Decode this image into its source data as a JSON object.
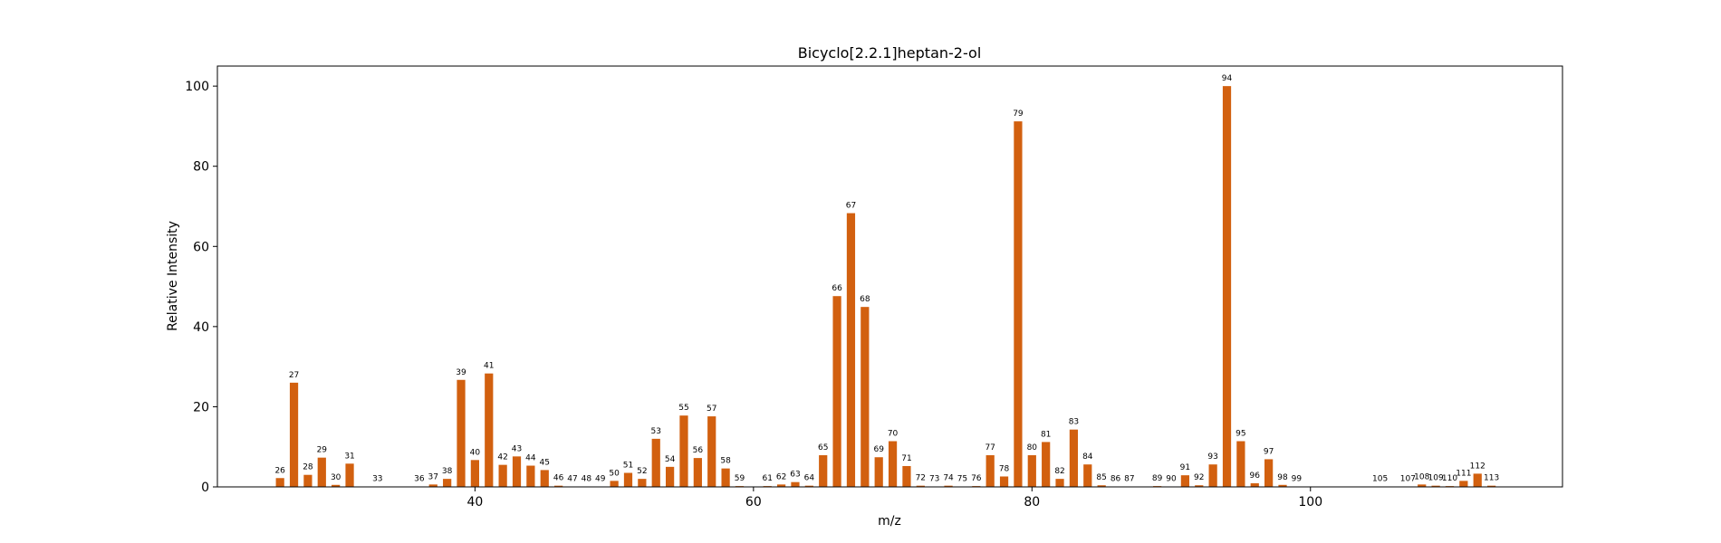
{
  "chart_data": {
    "type": "bar",
    "title": "Bicyclo[2.2.1]heptan-2-ol",
    "xlabel": "m/z",
    "ylabel": "Relative Intensity",
    "xlim": [
      25,
      113
    ],
    "ylim": [
      0,
      105
    ],
    "x_ticks": [
      40,
      60,
      80,
      100
    ],
    "y_ticks": [
      0,
      20,
      40,
      60,
      80,
      100
    ],
    "grid": false,
    "legend": "none",
    "bar_color": "#d2600f",
    "points": [
      {
        "mz": 26,
        "intensity": 2.2
      },
      {
        "mz": 27,
        "intensity": 26.0
      },
      {
        "mz": 28,
        "intensity": 3.0
      },
      {
        "mz": 29,
        "intensity": 7.3
      },
      {
        "mz": 30,
        "intensity": 0.5
      },
      {
        "mz": 31,
        "intensity": 5.8
      },
      {
        "mz": 33,
        "intensity": 0.1
      },
      {
        "mz": 36,
        "intensity": 0.1
      },
      {
        "mz": 37,
        "intensity": 0.6
      },
      {
        "mz": 38,
        "intensity": 2.0
      },
      {
        "mz": 39,
        "intensity": 26.7
      },
      {
        "mz": 40,
        "intensity": 6.7
      },
      {
        "mz": 41,
        "intensity": 28.3
      },
      {
        "mz": 42,
        "intensity": 5.5
      },
      {
        "mz": 43,
        "intensity": 7.6
      },
      {
        "mz": 44,
        "intensity": 5.3
      },
      {
        "mz": 45,
        "intensity": 4.2
      },
      {
        "mz": 46,
        "intensity": 0.3
      },
      {
        "mz": 47,
        "intensity": 0.1
      },
      {
        "mz": 48,
        "intensity": 0.1
      },
      {
        "mz": 49,
        "intensity": 0.1
      },
      {
        "mz": 50,
        "intensity": 1.5
      },
      {
        "mz": 51,
        "intensity": 3.5
      },
      {
        "mz": 52,
        "intensity": 2.0
      },
      {
        "mz": 53,
        "intensity": 12.0
      },
      {
        "mz": 54,
        "intensity": 5.0
      },
      {
        "mz": 55,
        "intensity": 17.8
      },
      {
        "mz": 56,
        "intensity": 7.2
      },
      {
        "mz": 57,
        "intensity": 17.6
      },
      {
        "mz": 58,
        "intensity": 4.6
      },
      {
        "mz": 59,
        "intensity": 0.2
      },
      {
        "mz": 61,
        "intensity": 0.2
      },
      {
        "mz": 62,
        "intensity": 0.6
      },
      {
        "mz": 63,
        "intensity": 1.2
      },
      {
        "mz": 64,
        "intensity": 0.3
      },
      {
        "mz": 65,
        "intensity": 7.9
      },
      {
        "mz": 66,
        "intensity": 47.6
      },
      {
        "mz": 67,
        "intensity": 68.3
      },
      {
        "mz": 68,
        "intensity": 44.9
      },
      {
        "mz": 69,
        "intensity": 7.4
      },
      {
        "mz": 70,
        "intensity": 11.4
      },
      {
        "mz": 71,
        "intensity": 5.2
      },
      {
        "mz": 72,
        "intensity": 0.3
      },
      {
        "mz": 73,
        "intensity": 0.1
      },
      {
        "mz": 74,
        "intensity": 0.3
      },
      {
        "mz": 75,
        "intensity": 0.1
      },
      {
        "mz": 76,
        "intensity": 0.2
      },
      {
        "mz": 77,
        "intensity": 7.9
      },
      {
        "mz": 78,
        "intensity": 2.6
      },
      {
        "mz": 79,
        "intensity": 91.2
      },
      {
        "mz": 80,
        "intensity": 7.9
      },
      {
        "mz": 81,
        "intensity": 11.2
      },
      {
        "mz": 82,
        "intensity": 2.0
      },
      {
        "mz": 83,
        "intensity": 14.3
      },
      {
        "mz": 84,
        "intensity": 5.6
      },
      {
        "mz": 85,
        "intensity": 0.4
      },
      {
        "mz": 86,
        "intensity": 0.1
      },
      {
        "mz": 87,
        "intensity": 0.1
      },
      {
        "mz": 89,
        "intensity": 0.2
      },
      {
        "mz": 90,
        "intensity": 0.1
      },
      {
        "mz": 91,
        "intensity": 2.9
      },
      {
        "mz": 92,
        "intensity": 0.4
      },
      {
        "mz": 93,
        "intensity": 5.6
      },
      {
        "mz": 94,
        "intensity": 100.0
      },
      {
        "mz": 95,
        "intensity": 11.4
      },
      {
        "mz": 96,
        "intensity": 0.9
      },
      {
        "mz": 97,
        "intensity": 6.9
      },
      {
        "mz": 98,
        "intensity": 0.5
      },
      {
        "mz": 99,
        "intensity": 0.1
      },
      {
        "mz": 105,
        "intensity": 0.1
      },
      {
        "mz": 107,
        "intensity": 0.1
      },
      {
        "mz": 108,
        "intensity": 0.6
      },
      {
        "mz": 109,
        "intensity": 0.3
      },
      {
        "mz": 110,
        "intensity": 0.2
      },
      {
        "mz": 111,
        "intensity": 1.5
      },
      {
        "mz": 112,
        "intensity": 3.3
      },
      {
        "mz": 113,
        "intensity": 0.3
      }
    ]
  }
}
